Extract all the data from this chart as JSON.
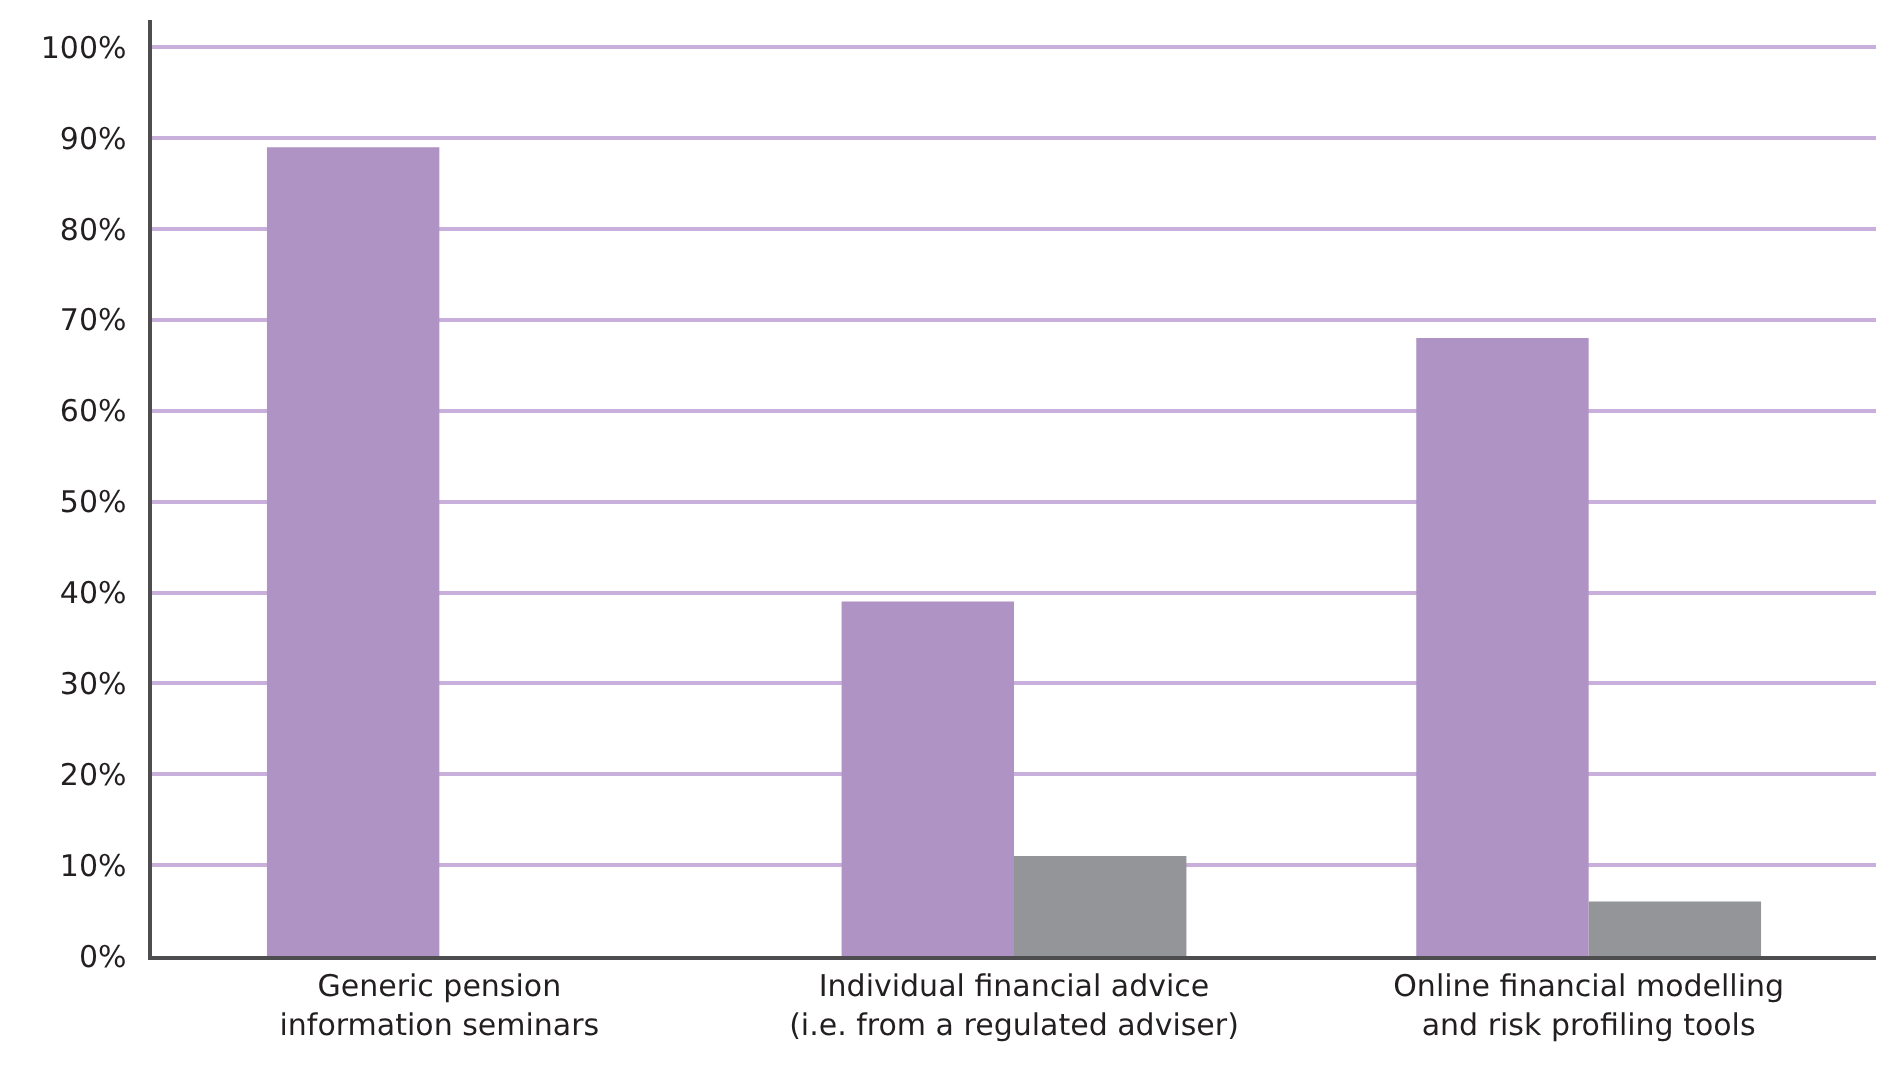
{
  "chart_data": {
    "type": "bar",
    "categories": [
      "Generic pension information seminars",
      "Individual financial advice (i.e. from a regulated adviser)",
      "Online financial modelling and risk profiling tools"
    ],
    "series": [
      {
        "color": "#b093c5",
        "values": [
          89,
          39,
          68
        ]
      },
      {
        "color": "#939598",
        "values": [
          null,
          11,
          6
        ]
      }
    ],
    "ylim": [
      0,
      103
    ],
    "yticks": [
      {
        "value": 0,
        "label": "0%"
      },
      {
        "value": 10,
        "label": "10%"
      },
      {
        "value": 20,
        "label": "20%"
      },
      {
        "value": 30,
        "label": "30%"
      },
      {
        "value": 40,
        "label": "40%"
      },
      {
        "value": 50,
        "label": "50%"
      },
      {
        "value": 60,
        "label": "60%"
      },
      {
        "value": 70,
        "label": "70%"
      },
      {
        "value": 80,
        "label": "80%"
      },
      {
        "value": 90,
        "label": "90%"
      },
      {
        "value": 100,
        "label": "100%"
      }
    ],
    "grid": "y"
  }
}
